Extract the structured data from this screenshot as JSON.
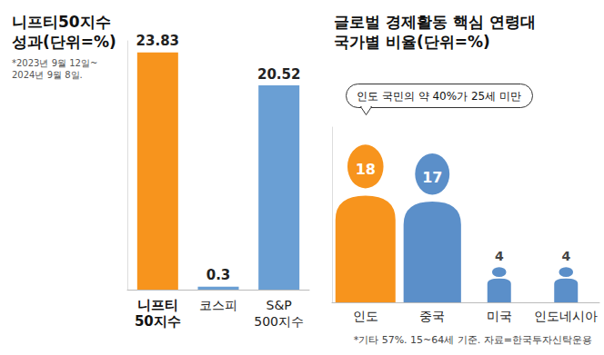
{
  "chart_data": [
    {
      "type": "bar",
      "title": "니프티50지수\n성과(단위=%)",
      "subtitle": "*2023년 9월 12일~\n2024년 9월 8일.",
      "categories": [
        "니프티\n50지수",
        "코스피",
        "S&P\n500지수"
      ],
      "values": [
        23.83,
        0.3,
        20.52
      ],
      "colors": [
        "#f7941d",
        "#6a9fd4",
        "#6a9fd4"
      ],
      "ylim": [
        0,
        25
      ],
      "data_labels": true,
      "tick_labels": "x",
      "grid": false
    },
    {
      "type": "pictorial",
      "title": "글로벌 경제활동 핵심 연령대\n국가별 비율(단위=%)",
      "annotation": "인도 국민의 약 40%가 25세 미만",
      "footnote": "*기타 57%. 15~64세 기준. 자료=한국투자신탁운용",
      "categories": [
        "인도",
        "중국",
        "미국",
        "인도네시아"
      ],
      "values": [
        18,
        17,
        4,
        4
      ],
      "colors": [
        "#f7941d",
        "#5b8fc9",
        "#5b8fc9",
        "#5b8fc9"
      ],
      "ylim": [
        0,
        20
      ],
      "data_labels": true,
      "tick_labels": "x",
      "grid": false
    }
  ]
}
